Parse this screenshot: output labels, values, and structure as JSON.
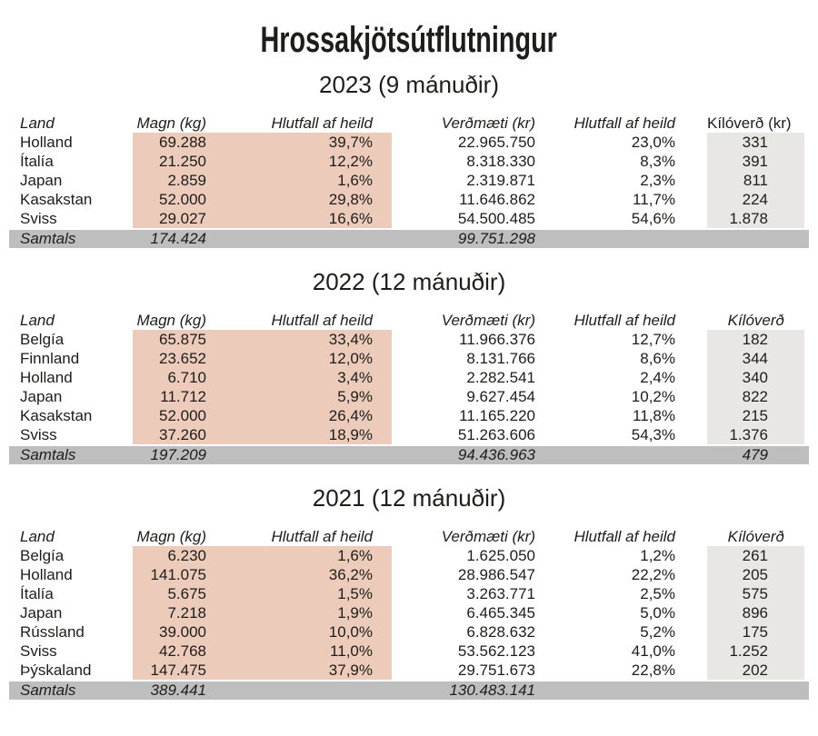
{
  "page": {
    "title": "Hrossakjötsútflutningur"
  },
  "colors": {
    "quantity_highlight": "#edcbbb",
    "kiloverd_column": "#e8e7e4",
    "samtals_row": "#bebebe",
    "text": "#1d1d1b",
    "background": "#ffffff"
  },
  "tables": [
    {
      "subtitle": "2023 (9 mánuðir)",
      "headers": {
        "land": "Land",
        "magn": "Magn (kg)",
        "hlutfall1": "Hlutfall af heild",
        "verdmaeti": "Verðmæti (kr)",
        "hlutfall2": "Hlutfall af heild",
        "kiloverd": "Kílóverð (kr)"
      },
      "kiloverd_header_italic": false,
      "rows": [
        {
          "land": "Holland",
          "magn": "69.288",
          "hlutfall1": "39,7%",
          "verdmaeti": "22.965.750",
          "hlutfall2": "23,0%",
          "kiloverd": "331"
        },
        {
          "land": "Ítalía",
          "magn": "21.250",
          "hlutfall1": "12,2%",
          "verdmaeti": "8.318.330",
          "hlutfall2": "8,3%",
          "kiloverd": "391"
        },
        {
          "land": "Japan",
          "magn": "2.859",
          "hlutfall1": "1,6%",
          "verdmaeti": "2.319.871",
          "hlutfall2": "2,3%",
          "kiloverd": "811"
        },
        {
          "land": "Kasakstan",
          "magn": "52.000",
          "hlutfall1": "29,8%",
          "verdmaeti": "11.646.862",
          "hlutfall2": "11,7%",
          "kiloverd": "224"
        },
        {
          "land": "Sviss",
          "magn": "29.027",
          "hlutfall1": "16,6%",
          "verdmaeti": "54.500.485",
          "hlutfall2": "54,6%",
          "kiloverd": "1.878"
        }
      ],
      "samtals": {
        "label": "Samtals",
        "magn": "174.424",
        "verdmaeti": "99.751.298",
        "kiloverd": ""
      }
    },
    {
      "subtitle": "2022 (12 mánuðir)",
      "headers": {
        "land": "Land",
        "magn": "Magn (kg)",
        "hlutfall1": "Hlutfall af heild",
        "verdmaeti": "Verðmæti (kr)",
        "hlutfall2": "Hlutfall af heild",
        "kiloverd": "Kílóverð"
      },
      "kiloverd_header_italic": true,
      "rows": [
        {
          "land": "Belgía",
          "magn": "65.875",
          "hlutfall1": "33,4%",
          "verdmaeti": "11.966.376",
          "hlutfall2": "12,7%",
          "kiloverd": "182"
        },
        {
          "land": "Finnland",
          "magn": "23.652",
          "hlutfall1": "12,0%",
          "verdmaeti": "8.131.766",
          "hlutfall2": "8,6%",
          "kiloverd": "344"
        },
        {
          "land": "Holland",
          "magn": "6.710",
          "hlutfall1": "3,4%",
          "verdmaeti": "2.282.541",
          "hlutfall2": "2,4%",
          "kiloverd": "340"
        },
        {
          "land": "Japan",
          "magn": "11.712",
          "hlutfall1": "5,9%",
          "verdmaeti": "9.627.454",
          "hlutfall2": "10,2%",
          "kiloverd": "822"
        },
        {
          "land": "Kasakstan",
          "magn": "52.000",
          "hlutfall1": "26,4%",
          "verdmaeti": "11.165.220",
          "hlutfall2": "11,8%",
          "kiloverd": "215"
        },
        {
          "land": "Sviss",
          "magn": "37.260",
          "hlutfall1": "18,9%",
          "verdmaeti": "51.263.606",
          "hlutfall2": "54,3%",
          "kiloverd": "1.376"
        }
      ],
      "samtals": {
        "label": "Samtals",
        "magn": "197.209",
        "verdmaeti": "94.436.963",
        "kiloverd": "479"
      }
    },
    {
      "subtitle": "2021 (12 mánuðir)",
      "headers": {
        "land": "Land",
        "magn": "Magn (kg)",
        "hlutfall1": "Hlutfall af heild",
        "verdmaeti": "Verðmæti (kr)",
        "hlutfall2": "Hlutfall af heild",
        "kiloverd": "Kílóverð"
      },
      "kiloverd_header_italic": true,
      "rows": [
        {
          "land": "Belgía",
          "magn": "6.230",
          "hlutfall1": "1,6%",
          "verdmaeti": "1.625.050",
          "hlutfall2": "1,2%",
          "kiloverd": "261"
        },
        {
          "land": "Holland",
          "magn": "141.075",
          "hlutfall1": "36,2%",
          "verdmaeti": "28.986.547",
          "hlutfall2": "22,2%",
          "kiloverd": "205"
        },
        {
          "land": "Ítalía",
          "magn": "5.675",
          "hlutfall1": "1,5%",
          "verdmaeti": "3.263.771",
          "hlutfall2": "2,5%",
          "kiloverd": "575"
        },
        {
          "land": "Japan",
          "magn": "7.218",
          "hlutfall1": "1,9%",
          "verdmaeti": "6.465.345",
          "hlutfall2": "5,0%",
          "kiloverd": "896"
        },
        {
          "land": "Rússland",
          "magn": "39.000",
          "hlutfall1": "10,0%",
          "verdmaeti": "6.828.632",
          "hlutfall2": "5,2%",
          "kiloverd": "175"
        },
        {
          "land": "Sviss",
          "magn": "42.768",
          "hlutfall1": "11,0%",
          "verdmaeti": "53.562.123",
          "hlutfall2": "41,0%",
          "kiloverd": "1.252"
        },
        {
          "land": "Þýskaland",
          "magn": "147.475",
          "hlutfall1": "37,9%",
          "verdmaeti": "29.751.673",
          "hlutfall2": "22,8%",
          "kiloverd": "202"
        }
      ],
      "samtals": {
        "label": "Samtals",
        "magn": "389.441",
        "verdmaeti": "130.483.141",
        "kiloverd": ""
      }
    }
  ]
}
